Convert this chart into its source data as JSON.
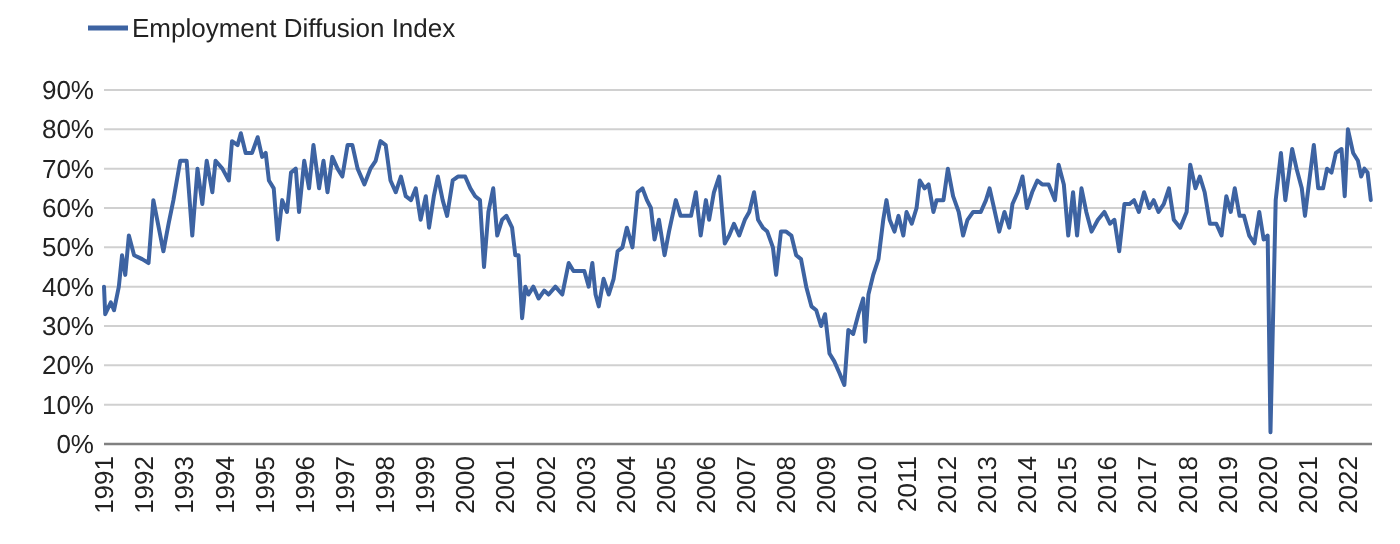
{
  "chart_data": {
    "type": "line",
    "legend": "top left",
    "grid": "y",
    "xlim": [
      1991,
      2022.6
    ],
    "ylim": [
      0,
      90
    ],
    "xticks": [
      1991,
      1992,
      1993,
      1994,
      1995,
      1996,
      1997,
      1998,
      1999,
      2000,
      2001,
      2002,
      2003,
      2004,
      2005,
      2006,
      2007,
      2008,
      2009,
      2010,
      2011,
      2012,
      2013,
      2014,
      2015,
      2016,
      2017,
      2018,
      2019,
      2020,
      2021,
      2022
    ],
    "yticks": [
      {
        "value": 0,
        "label": "0%"
      },
      {
        "value": 10,
        "label": "10%"
      },
      {
        "value": 20,
        "label": "20%"
      },
      {
        "value": 30,
        "label": "30%"
      },
      {
        "value": 40,
        "label": "40%"
      },
      {
        "value": 50,
        "label": "50%"
      },
      {
        "value": 60,
        "label": "60%"
      },
      {
        "value": 70,
        "label": "70%"
      },
      {
        "value": 80,
        "label": "80%"
      },
      {
        "value": 90,
        "label": "90%"
      }
    ],
    "series": [
      {
        "name": "Employment Diffusion Index",
        "color": "#3d63a2",
        "x": [
          1991.0,
          1991.03,
          1991.17,
          1991.25,
          1991.37,
          1991.45,
          1991.53,
          1991.62,
          1991.75,
          1991.95,
          1992.11,
          1992.23,
          1992.48,
          1992.61,
          1992.73,
          1992.9,
          1993.06,
          1993.2,
          1993.33,
          1993.45,
          1993.56,
          1993.7,
          1993.78,
          1993.95,
          1994.11,
          1994.19,
          1994.33,
          1994.41,
          1994.53,
          1994.69,
          1994.83,
          1994.94,
          1995.03,
          1995.11,
          1995.23,
          1995.33,
          1995.44,
          1995.56,
          1995.66,
          1995.78,
          1995.86,
          1995.99,
          1996.11,
          1996.22,
          1996.36,
          1996.47,
          1996.57,
          1996.69,
          1996.82,
          1996.94,
          1997.07,
          1997.19,
          1997.32,
          1997.49,
          1997.64,
          1997.77,
          1997.89,
          1998.02,
          1998.14,
          1998.27,
          1998.4,
          1998.52,
          1998.65,
          1998.77,
          1998.89,
          1999.02,
          1999.1,
          1999.22,
          1999.32,
          1999.44,
          1999.55,
          1999.69,
          1999.82,
          2000.0,
          2000.13,
          2000.25,
          2000.37,
          2000.47,
          2000.58,
          2000.7,
          2000.8,
          2000.92,
          2001.03,
          2001.17,
          2001.25,
          2001.33,
          2001.42,
          2001.5,
          2001.58,
          2001.7,
          2001.83,
          2001.97,
          2002.08,
          2002.25,
          2002.42,
          2002.58,
          2002.7,
          2002.83,
          2002.97,
          2003.08,
          2003.17,
          2003.25,
          2003.33,
          2003.45,
          2003.58,
          2003.7,
          2003.8,
          2003.92,
          2004.03,
          2004.17,
          2004.3,
          2004.42,
          2004.53,
          2004.63,
          2004.72,
          2004.83,
          2004.97,
          2005.08,
          2005.25,
          2005.37,
          2005.63,
          2005.75,
          2005.87,
          2006.0,
          2006.08,
          2006.2,
          2006.33,
          2006.47,
          2006.58,
          2006.7,
          2006.83,
          2006.97,
          2007.08,
          2007.2,
          2007.3,
          2007.42,
          2007.53,
          2007.67,
          2007.75,
          2007.87,
          2008.0,
          2008.13,
          2008.25,
          2008.37,
          2008.5,
          2008.63,
          2008.75,
          2008.87,
          2008.97,
          2009.08,
          2009.2,
          2009.33,
          2009.45,
          2009.55,
          2009.67,
          2009.8,
          2009.92,
          2009.97,
          2010.05,
          2010.17,
          2010.3,
          2010.42,
          2010.5,
          2010.58,
          2010.7,
          2010.8,
          2010.92,
          2011.0,
          2011.13,
          2011.25,
          2011.33,
          2011.45,
          2011.55,
          2011.67,
          2011.75,
          2011.92,
          2012.03,
          2012.16,
          2012.3,
          2012.41,
          2012.52,
          2012.66,
          2012.85,
          2012.98,
          2013.07,
          2013.18,
          2013.31,
          2013.44,
          2013.56,
          2013.64,
          2013.77,
          2013.89,
          2014.0,
          2014.13,
          2014.26,
          2014.38,
          2014.54,
          2014.7,
          2014.79,
          2014.92,
          2015.03,
          2015.15,
          2015.25,
          2015.36,
          2015.48,
          2015.61,
          2015.77,
          2015.93,
          2016.07,
          2016.18,
          2016.3,
          2016.43,
          2016.56,
          2016.67,
          2016.79,
          2016.92,
          2017.05,
          2017.16,
          2017.28,
          2017.41,
          2017.54,
          2017.66,
          2017.82,
          2017.98,
          2018.07,
          2018.2,
          2018.31,
          2018.43,
          2018.56,
          2018.72,
          2018.85,
          2018.97,
          2019.08,
          2019.18,
          2019.3,
          2019.41,
          2019.54,
          2019.67,
          2019.79,
          2019.9,
          2020.0,
          2020.07,
          2020.2,
          2020.33,
          2020.44,
          2020.61,
          2020.72,
          2020.85,
          2020.93,
          2021.05,
          2021.15,
          2021.26,
          2021.38,
          2021.48,
          2021.59,
          2021.7,
          2021.84,
          2021.92,
          2022.0,
          2022.13,
          2022.25,
          2022.33,
          2022.41,
          2022.49,
          2022.57
        ],
        "values": [
          40,
          33,
          36,
          34,
          40,
          48,
          43,
          53,
          48,
          47,
          46,
          62,
          49,
          56,
          62,
          72,
          72,
          53,
          70,
          61,
          72,
          64,
          72,
          70,
          67,
          77,
          76,
          79,
          74,
          74,
          78,
          73,
          74,
          67,
          65,
          52,
          62,
          59,
          69,
          70,
          59,
          72,
          65,
          76,
          65,
          72,
          64,
          73,
          70,
          68,
          76,
          76,
          70,
          66,
          70,
          72,
          77,
          76,
          67,
          64,
          68,
          63,
          62,
          65,
          57,
          63,
          55,
          63,
          68,
          62,
          58,
          67,
          68,
          68,
          65,
          63,
          62,
          45,
          59,
          65,
          53,
          57,
          58,
          55,
          48,
          48,
          32,
          40,
          38,
          40,
          37,
          39,
          38,
          40,
          38,
          46,
          44,
          44,
          44,
          40,
          46,
          38,
          35,
          42,
          38,
          42,
          49,
          50,
          55,
          50,
          64,
          65,
          62,
          60,
          52,
          57,
          48,
          54,
          62,
          58,
          58,
          64,
          53,
          62,
          57,
          64,
          68,
          51,
          53,
          56,
          53,
          57,
          59,
          64,
          57,
          55,
          54,
          50,
          43,
          54,
          54,
          53,
          48,
          47,
          40,
          35,
          34,
          30,
          33,
          23,
          21,
          18,
          15,
          29,
          28,
          33,
          37,
          26,
          38,
          43,
          47,
          57,
          62,
          57,
          54,
          58,
          53,
          59,
          56,
          60,
          67,
          65,
          66,
          59,
          62,
          62,
          70,
          63,
          59,
          53,
          57,
          59,
          59,
          62,
          65,
          60,
          54,
          59,
          55,
          61,
          64,
          68,
          60,
          64,
          67,
          66,
          66,
          62,
          71,
          66,
          53,
          64,
          53,
          65,
          59,
          54,
          57,
          59,
          56,
          57,
          49,
          61,
          61,
          62,
          59,
          64,
          60,
          62,
          59,
          61,
          65,
          57,
          55,
          59,
          71,
          65,
          68,
          64,
          56,
          56,
          53,
          63,
          59,
          65,
          58,
          58,
          53,
          51,
          59,
          52,
          53,
          3,
          62,
          74,
          62,
          75,
          70,
          65,
          58,
          68,
          76,
          65,
          65,
          70,
          69,
          74,
          75,
          63,
          80,
          74,
          72,
          68,
          70,
          69,
          62
        ]
      }
    ]
  }
}
